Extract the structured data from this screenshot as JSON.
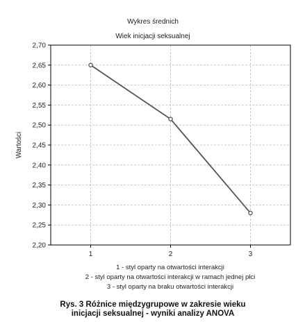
{
  "chart_data": {
    "type": "line",
    "title": "Wykres średnich",
    "subtitle": "Wiek inicjacji seksualnej",
    "ylabel": "Wartości",
    "xlabel": "",
    "x": [
      "1",
      "2",
      "3"
    ],
    "series": [
      {
        "values": [
          2.65,
          2.515,
          2.28
        ]
      }
    ],
    "ylim": [
      2.2,
      2.7
    ],
    "yticks": [
      "2,20",
      "2,25",
      "2,30",
      "2,35",
      "2,40",
      "2,45",
      "2,50",
      "2,55",
      "2,60",
      "2,65",
      "2,70"
    ],
    "grid": true,
    "legend_lines": [
      "1 - styl oparty na otwartości interakcji",
      "2 - styl oparty na otwartości interakcji w ramach jednej płci",
      "3 - styl oparty na braku otwartości interakcji"
    ],
    "colors": {
      "line": "#555555",
      "grid": "#c8c8c8",
      "axis": "#000000"
    }
  },
  "caption": {
    "line1": "Rys. 3 Różnice międzygrupowe w zakresie wieku",
    "line2": "inicjacji seksualnej - wyniki analizy ANOVA"
  }
}
